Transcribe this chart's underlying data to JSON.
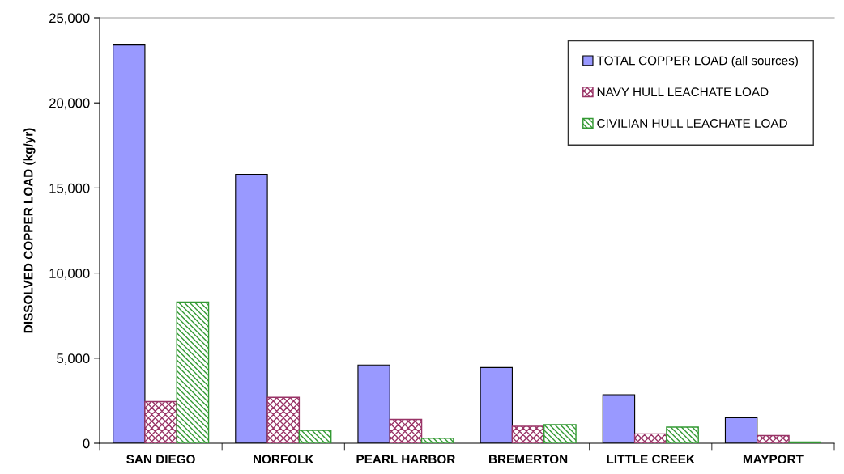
{
  "chart_data": {
    "type": "bar",
    "ylabel": "DISSOLVED COPPER LOAD (kg/yr)",
    "categories": [
      "SAN DIEGO",
      "NORFOLK",
      "PEARL HARBOR",
      "BREMERTON",
      "LITTLE CREEK",
      "MAYPORT"
    ],
    "series": [
      {
        "name": "TOTAL COPPER LOAD (all sources)",
        "color": "#9999ff",
        "values": [
          23400,
          15800,
          4600,
          4450,
          2850,
          1500
        ]
      },
      {
        "name": "NAVY HULL LEACHATE LOAD",
        "color": "#993366",
        "values": [
          2450,
          2700,
          1400,
          1000,
          550,
          450
        ]
      },
      {
        "name": "CIVILIAN HULL LEACHATE LOAD",
        "color": "#339933",
        "values": [
          8300,
          760,
          300,
          1100,
          950,
          70
        ]
      }
    ],
    "ylim": [
      0,
      25000
    ],
    "yticks": [
      {
        "value": 0,
        "label": "0"
      },
      {
        "value": 5000,
        "label": "5,000"
      },
      {
        "value": 10000,
        "label": "10,000"
      },
      {
        "value": 15000,
        "label": "15,000"
      },
      {
        "value": 20000,
        "label": "20,000"
      },
      {
        "value": 25000,
        "label": "25,000"
      }
    ],
    "grid": false,
    "legend": "top right"
  }
}
